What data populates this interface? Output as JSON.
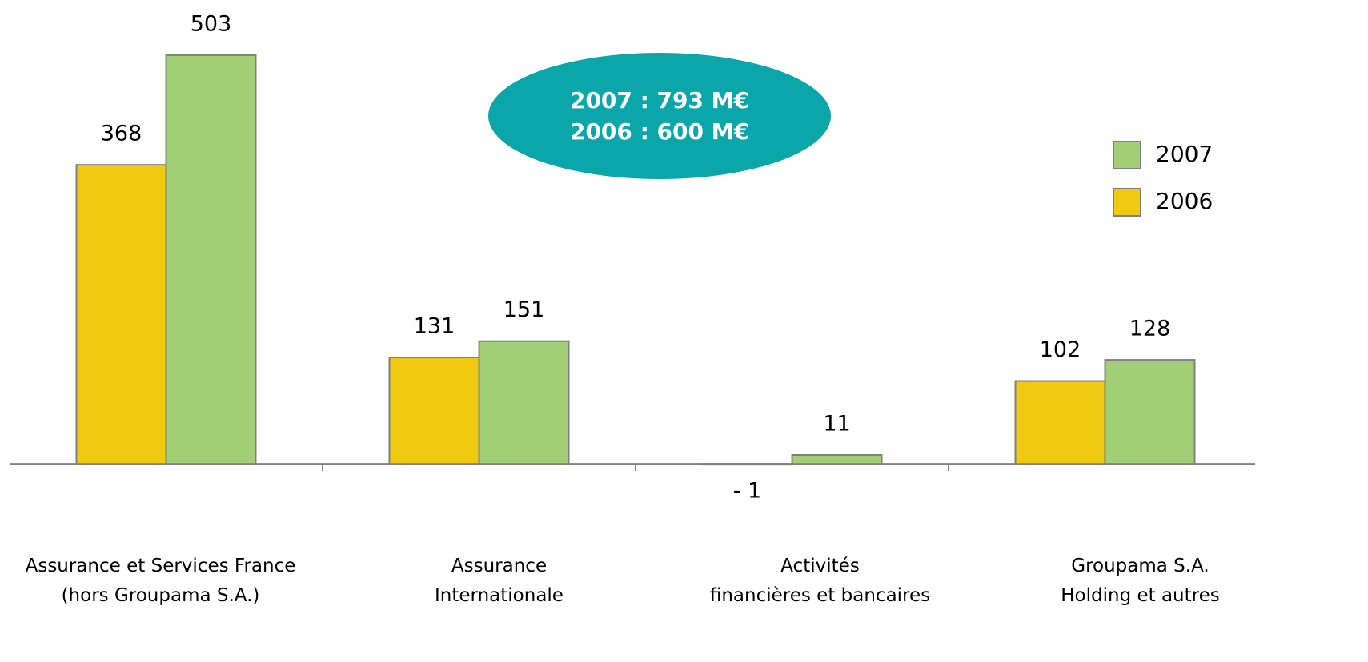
{
  "chart_data": {
    "type": "bar",
    "categories": [
      "Assurance et Services France\n(hors Groupama S.A.)",
      "Assurance\nInternationale",
      "Activités\nfinancières et bancaires",
      "Groupama S.A.\nHolding et autres"
    ],
    "series": [
      {
        "name": "2006",
        "color": "#f0c911",
        "values": [
          368,
          131,
          -1,
          102
        ],
        "value_labels": [
          "368",
          "131",
          "- 1",
          "102"
        ]
      },
      {
        "name": "2007",
        "color": "#a2cf75",
        "values": [
          503,
          151,
          11,
          128
        ]
      }
    ],
    "annotations": [
      "2007 : 793 M€",
      "2006 : 600 M€"
    ],
    "ylim": [
      -50,
      560
    ],
    "legend": "right"
  }
}
